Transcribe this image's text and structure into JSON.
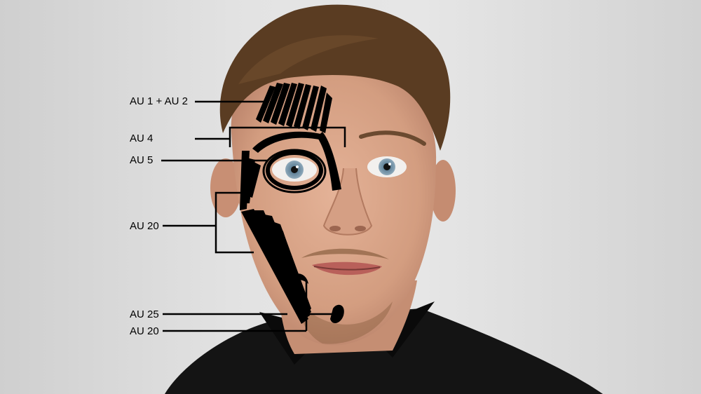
{
  "annotations": {
    "au1_2": "AU 1 + AU 2",
    "au4": "AU 4",
    "au5": "AU 5",
    "au20_upper": "AU 20",
    "au25": "AU 25",
    "au20_lower": "AU 20"
  },
  "colors": {
    "background": "#e3e3e3",
    "skin": "#d9a58a",
    "hair": "#5a3c22",
    "shirt": "#141414",
    "muscle_ink": "#000000",
    "iris": "#6b8fa8"
  }
}
